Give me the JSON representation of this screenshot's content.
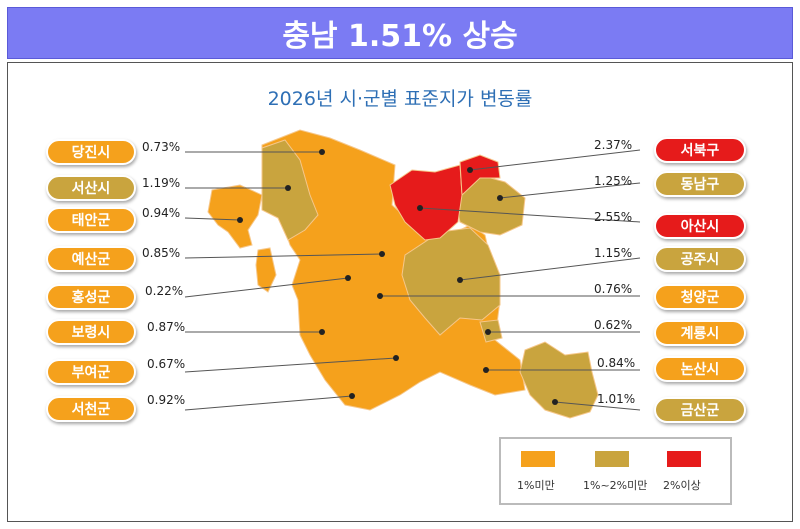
{
  "header": {
    "title": "충남 1.51% 상승"
  },
  "map": {
    "title": "2026년 시·군별 표준지가 변동률"
  },
  "colors": {
    "low": "#f5a11c",
    "mid": "#c9a43e",
    "high": "#e61b1b"
  },
  "regions_left": [
    {
      "name": "당진시",
      "rate": "0.73%",
      "level": "low"
    },
    {
      "name": "서산시",
      "rate": "1.19%",
      "level": "mid"
    },
    {
      "name": "태안군",
      "rate": "0.94%",
      "level": "low"
    },
    {
      "name": "예산군",
      "rate": "0.85%",
      "level": "low"
    },
    {
      "name": "홍성군",
      "rate": "0.22%",
      "level": "low"
    },
    {
      "name": "보령시",
      "rate": "0.87%",
      "level": "low"
    },
    {
      "name": "부여군",
      "rate": "0.67%",
      "level": "low"
    },
    {
      "name": "서천군",
      "rate": "0.92%",
      "level": "low"
    }
  ],
  "regions_right": [
    {
      "name": "서북구",
      "rate": "2.37%",
      "level": "high"
    },
    {
      "name": "동남구",
      "rate": "1.25%",
      "level": "mid"
    },
    {
      "name": "아산시",
      "rate": "2.55%",
      "level": "high"
    },
    {
      "name": "공주시",
      "rate": "1.15%",
      "level": "mid"
    },
    {
      "name": "청양군",
      "rate": "0.76%",
      "level": "low"
    },
    {
      "name": "계룡시",
      "rate": "0.62%",
      "level": "low"
    },
    {
      "name": "논산시",
      "rate": "0.84%",
      "level": "low"
    },
    {
      "name": "금산군",
      "rate": "1.01%",
      "level": "mid"
    }
  ],
  "legend": {
    "low": "1%미만",
    "mid": "1%~2%미만",
    "high": "2%이상"
  }
}
